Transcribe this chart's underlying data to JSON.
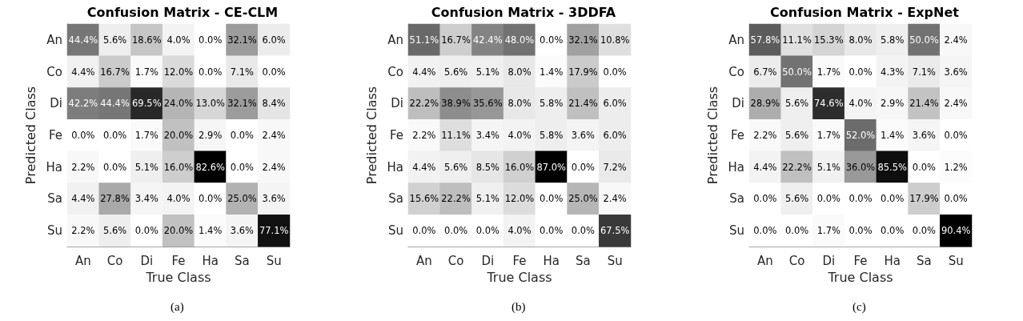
{
  "chart_data": [
    {
      "type": "heatmap",
      "title": "Confusion Matrix - CE-CLM",
      "xlabel": "True Class",
      "ylabel": "Predicted Class",
      "annotations": [
        "(a)"
      ],
      "categories": [
        "An",
        "Co",
        "Di",
        "Fe",
        "Ha",
        "Sa",
        "Su"
      ],
      "y_categories": [
        "An",
        "Co",
        "Di",
        "Fe",
        "Ha",
        "Sa",
        "Su"
      ],
      "cells": [
        [
          44.4,
          5.6,
          18.6,
          4.0,
          0.0,
          32.1,
          6.0
        ],
        [
          4.4,
          16.7,
          1.7,
          12.0,
          0.0,
          7.1,
          0.0
        ],
        [
          42.2,
          44.4,
          69.5,
          24.0,
          13.0,
          32.1,
          8.4
        ],
        [
          0.0,
          0.0,
          1.7,
          20.0,
          2.9,
          0.0,
          2.4
        ],
        [
          2.2,
          0.0,
          5.1,
          16.0,
          82.6,
          0.0,
          2.4
        ],
        [
          4.4,
          27.8,
          3.4,
          4.0,
          0.0,
          25.0,
          3.6
        ],
        [
          2.2,
          5.6,
          0.0,
          20.0,
          1.4,
          3.6,
          77.1
        ]
      ],
      "cell_labels": [
        [
          "44.4%",
          "5.6%",
          "18.6%",
          "4.0%",
          "0.0%",
          "32.1%",
          "6.0%"
        ],
        [
          "4.4%",
          "16.7%",
          "1.7%",
          "12.0%",
          "0.0%",
          "7.1%",
          "0.0%"
        ],
        [
          "42.2%",
          "44.4%",
          "69.5%",
          "24.0%",
          "13.0%",
          "32.1%",
          "8.4%"
        ],
        [
          "0.0%",
          "0.0%",
          "1.7%",
          "20.0%",
          "2.9%",
          "0.0%",
          "2.4%"
        ],
        [
          "2.2%",
          "0.0%",
          "5.1%",
          "16.0%",
          "82.6%",
          "0.0%",
          "2.4%"
        ],
        [
          "4.4%",
          "27.8%",
          "3.4%",
          "4.0%",
          "0.0%",
          "25.0%",
          "3.6%"
        ],
        [
          "2.2%",
          "5.6%",
          "0.0%",
          "20.0%",
          "1.4%",
          "3.6%",
          "77.1%"
        ]
      ]
    },
    {
      "type": "heatmap",
      "title": "Confusion Matrix - 3DDFA",
      "xlabel": "True Class",
      "ylabel": "Predicted Class",
      "annotations": [
        "(b)"
      ],
      "categories": [
        "An",
        "Co",
        "Di",
        "Fe",
        "Ha",
        "Sa",
        "Su"
      ],
      "y_categories": [
        "An",
        "Co",
        "Di",
        "Fe",
        "Ha",
        "Sa",
        "Su"
      ],
      "cells": [
        [
          51.1,
          16.7,
          42.4,
          48.0,
          0.0,
          32.1,
          10.8
        ],
        [
          4.4,
          5.6,
          5.1,
          8.0,
          1.4,
          17.9,
          0.0
        ],
        [
          22.2,
          38.9,
          35.6,
          8.0,
          5.8,
          21.4,
          6.0
        ],
        [
          2.2,
          11.1,
          3.4,
          4.0,
          5.8,
          3.6,
          6.0
        ],
        [
          4.4,
          5.6,
          8.5,
          16.0,
          87.0,
          0.0,
          7.2
        ],
        [
          15.6,
          22.2,
          5.1,
          12.0,
          0.0,
          25.0,
          2.4
        ],
        [
          0.0,
          0.0,
          0.0,
          4.0,
          0.0,
          0.0,
          67.5
        ]
      ],
      "cell_labels": [
        [
          "51.1%",
          "16.7%",
          "42.4%",
          "48.0%",
          "0.0%",
          "32.1%",
          "10.8%"
        ],
        [
          "4.4%",
          "5.6%",
          "5.1%",
          "8.0%",
          "1.4%",
          "17.9%",
          "0.0%"
        ],
        [
          "22.2%",
          "38.9%",
          "35.6%",
          "8.0%",
          "5.8%",
          "21.4%",
          "6.0%"
        ],
        [
          "2.2%",
          "11.1%",
          "3.4%",
          "4.0%",
          "5.8%",
          "3.6%",
          "6.0%"
        ],
        [
          "4.4%",
          "5.6%",
          "8.5%",
          "16.0%",
          "87.0%",
          "0.0%",
          "7.2%"
        ],
        [
          "15.6%",
          "22.2%",
          "5.1%",
          "12.0%",
          "0.0%",
          "25.0%",
          "2.4%"
        ],
        [
          "0.0%",
          "0.0%",
          "0.0%",
          "4.0%",
          "0.0%",
          "0.0%",
          "67.5%"
        ]
      ]
    },
    {
      "type": "heatmap",
      "title": "Confusion Matrix - ExpNet",
      "xlabel": "True Class",
      "ylabel": "Predicted Class",
      "annotations": [
        "(c)"
      ],
      "categories": [
        "An",
        "Co",
        "Di",
        "Fe",
        "Ha",
        "Sa",
        "Su"
      ],
      "y_categories": [
        "An",
        "Co",
        "Di",
        "Fe",
        "Ha",
        "Sa",
        "Su"
      ],
      "cells": [
        [
          57.8,
          11.1,
          15.3,
          8.0,
          5.8,
          50.0,
          2.4
        ],
        [
          6.7,
          50.0,
          1.7,
          0.0,
          4.3,
          7.1,
          3.6
        ],
        [
          28.9,
          5.6,
          74.6,
          4.0,
          2.9,
          21.4,
          2.4
        ],
        [
          2.2,
          5.6,
          1.7,
          52.0,
          1.4,
          3.6,
          0.0
        ],
        [
          4.4,
          22.2,
          5.1,
          36.0,
          85.5,
          0.0,
          1.2
        ],
        [
          0.0,
          5.6,
          0.0,
          0.0,
          0.0,
          17.9,
          0.0
        ],
        [
          0.0,
          0.0,
          1.7,
          0.0,
          0.0,
          0.0,
          90.4
        ]
      ],
      "cell_labels": [
        [
          "57.8%",
          "11.1%",
          "15.3%",
          "8.0%",
          "5.8%",
          "50.0%",
          "2.4%"
        ],
        [
          "6.7%",
          "50.0%",
          "1.7%",
          "0.0%",
          "4.3%",
          "7.1%",
          "3.6%"
        ],
        [
          "28.9%",
          "5.6%",
          "74.6%",
          "4.0%",
          "2.9%",
          "21.4%",
          "2.4%"
        ],
        [
          "2.2%",
          "5.6%",
          "1.7%",
          "52.0%",
          "1.4%",
          "3.6%",
          "0.0%"
        ],
        [
          "4.4%",
          "22.2%",
          "5.1%",
          "36.0%",
          "85.5%",
          "0.0%",
          "1.2%"
        ],
        [
          "0.0%",
          "5.6%",
          "0.0%",
          "0.0%",
          "0.0%",
          "17.9%",
          "0.0%"
        ],
        [
          "0.0%",
          "0.0%",
          "1.7%",
          "0.0%",
          "0.0%",
          "0.0%",
          "90.4%"
        ]
      ]
    }
  ]
}
